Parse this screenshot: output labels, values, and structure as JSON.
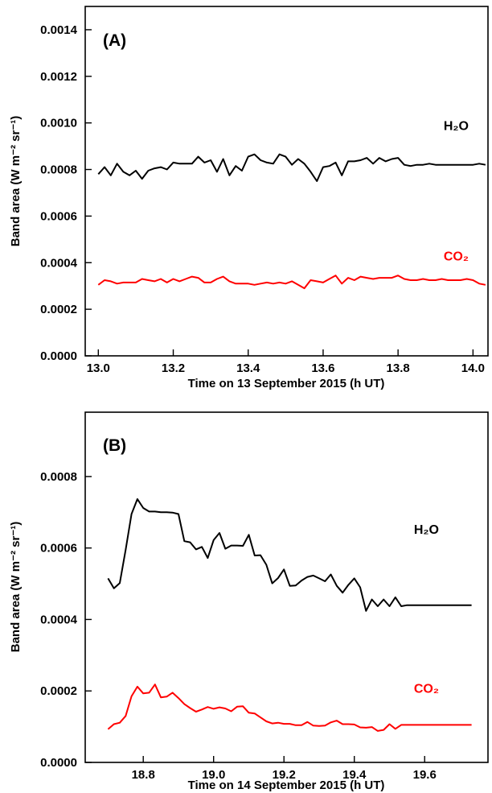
{
  "chart_data": [
    {
      "type": "line",
      "panel_label": "(A)",
      "xlabel": "Time on 13 September 2015  (h UT)",
      "ylabel": "Band area (W m⁻² sr⁻¹)",
      "xlim": [
        12.965,
        14.04
      ],
      "ylim": [
        0.0,
        0.0015
      ],
      "xticks": [
        13.0,
        13.2,
        13.4,
        13.6,
        13.8,
        14.0
      ],
      "xtick_labels": [
        "13.0",
        "13.2",
        "13.4",
        "13.6",
        "13.8",
        "14.0"
      ],
      "yticks": [
        0.0,
        0.0002,
        0.0004,
        0.0006,
        0.0008,
        0.001,
        0.0012,
        0.0014
      ],
      "ytick_labels": [
        "0.0000",
        "0.0002",
        "0.0004",
        "0.0006",
        "0.0008",
        "0.0010",
        "0.0012",
        "0.0014"
      ],
      "grid": false,
      "series": [
        {
          "name": "H₂O",
          "color": "#000000",
          "x": [
            13.0,
            13.0167,
            13.0333,
            13.05,
            13.0667,
            13.0833,
            13.1,
            13.1167,
            13.1333,
            13.15,
            13.1667,
            13.1833,
            13.2,
            13.2167,
            13.2333,
            13.25,
            13.2667,
            13.2833,
            13.3,
            13.3167,
            13.3333,
            13.35,
            13.3667,
            13.3833,
            13.4,
            13.4167,
            13.4333,
            13.45,
            13.4667,
            13.4833,
            13.5,
            13.5167,
            13.5333,
            13.55,
            13.5667,
            13.5833,
            13.6,
            13.6167,
            13.6333,
            13.65,
            13.6667,
            13.6833,
            13.7,
            13.7167,
            13.7333,
            13.75,
            13.7667,
            13.7833,
            13.8,
            13.8167,
            13.8333,
            13.85,
            13.8667,
            13.8833,
            13.9,
            13.9167,
            13.9333,
            13.95,
            13.9667,
            13.9833,
            14.0,
            14.0167,
            14.0333
          ],
          "y": [
            0.00078,
            0.00081,
            0.000775,
            0.000825,
            0.00079,
            0.000775,
            0.000795,
            0.00076,
            0.000795,
            0.000805,
            0.00081,
            0.0008,
            0.00083,
            0.000825,
            0.000825,
            0.000825,
            0.000855,
            0.00083,
            0.00084,
            0.00079,
            0.000845,
            0.000775,
            0.000815,
            0.000795,
            0.000855,
            0.000865,
            0.00084,
            0.00083,
            0.000825,
            0.000865,
            0.000855,
            0.00082,
            0.000845,
            0.000825,
            0.00079,
            0.00075,
            0.00081,
            0.000815,
            0.00083,
            0.000775,
            0.000835,
            0.000835,
            0.00084,
            0.00085,
            0.000825,
            0.00085,
            0.000835,
            0.000845,
            0.00085,
            0.00082,
            0.000815,
            0.00082,
            0.00082,
            0.000825,
            0.00082,
            0.00082,
            0.00082,
            0.00082,
            0.00082,
            0.00082,
            0.00082,
            0.000825,
            0.00082
          ]
        },
        {
          "name": "CO₂",
          "color": "#ff0000",
          "x": [
            13.0,
            13.0167,
            13.0333,
            13.05,
            13.0667,
            13.0833,
            13.1,
            13.1167,
            13.1333,
            13.15,
            13.1667,
            13.1833,
            13.2,
            13.2167,
            13.2333,
            13.25,
            13.2667,
            13.2833,
            13.3,
            13.3167,
            13.3333,
            13.35,
            13.3667,
            13.3833,
            13.4,
            13.4167,
            13.4333,
            13.45,
            13.4667,
            13.4833,
            13.5,
            13.5167,
            13.5333,
            13.55,
            13.5667,
            13.5833,
            13.6,
            13.6167,
            13.6333,
            13.65,
            13.6667,
            13.6833,
            13.7,
            13.7167,
            13.7333,
            13.75,
            13.7667,
            13.7833,
            13.8,
            13.8167,
            13.8333,
            13.85,
            13.8667,
            13.8833,
            13.9,
            13.9167,
            13.9333,
            13.95,
            13.9667,
            13.9833,
            14.0,
            14.0167,
            14.0333
          ],
          "y": [
            0.000305,
            0.000325,
            0.00032,
            0.00031,
            0.000315,
            0.000315,
            0.000315,
            0.00033,
            0.000325,
            0.00032,
            0.00033,
            0.000315,
            0.00033,
            0.00032,
            0.00033,
            0.00034,
            0.000335,
            0.000315,
            0.000315,
            0.00033,
            0.00034,
            0.00032,
            0.00031,
            0.00031,
            0.00031,
            0.000305,
            0.00031,
            0.000315,
            0.00031,
            0.000315,
            0.00031,
            0.00032,
            0.000305,
            0.00029,
            0.000325,
            0.00032,
            0.000315,
            0.00033,
            0.000345,
            0.00031,
            0.000335,
            0.000325,
            0.00034,
            0.000335,
            0.00033,
            0.000335,
            0.000335,
            0.000335,
            0.000345,
            0.00033,
            0.000325,
            0.000325,
            0.00033,
            0.000325,
            0.000325,
            0.00033,
            0.000325,
            0.000325,
            0.000325,
            0.00033,
            0.000325,
            0.00031,
            0.000305
          ]
        }
      ],
      "annotations": [
        {
          "text": "H₂O",
          "x": 13.955,
          "y": 0.00097,
          "color": "#000000"
        },
        {
          "text": "CO₂",
          "x": 13.955,
          "y": 0.00041,
          "color": "#ff0000"
        }
      ]
    },
    {
      "type": "line",
      "panel_label": "(B)",
      "xlabel": "Time on 14 September 2015  (h UT)",
      "ylabel": "Band area (W m⁻² sr⁻¹)",
      "xlim": [
        18.635,
        19.78
      ],
      "ylim": [
        0.0,
        0.00098
      ],
      "xticks": [
        18.8,
        19.0,
        19.2,
        19.4,
        19.6
      ],
      "xtick_labels": [
        "18.8",
        "19.0",
        "19.2",
        "19.4",
        "19.6"
      ],
      "yticks": [
        0.0,
        0.0002,
        0.0004,
        0.0006,
        0.0008
      ],
      "ytick_labels": [
        "0.0000",
        "0.0002",
        "0.0004",
        "0.0006",
        "0.0008"
      ],
      "grid": false,
      "series": [
        {
          "name": "H₂O",
          "color": "#000000",
          "x": [
            18.7,
            18.7167,
            18.7333,
            18.75,
            18.7667,
            18.7833,
            18.8,
            18.8167,
            18.8333,
            18.85,
            18.8667,
            18.8833,
            18.9,
            18.9167,
            18.9333,
            18.95,
            18.9667,
            18.9833,
            19.0,
            19.0167,
            19.0333,
            19.05,
            19.0667,
            19.0833,
            19.1,
            19.1167,
            19.1333,
            19.15,
            19.1667,
            19.1833,
            19.2,
            19.2167,
            19.2333,
            19.25,
            19.2667,
            19.2833,
            19.3,
            19.3167,
            19.3333,
            19.35,
            19.3667,
            19.3833,
            19.4,
            19.4167,
            19.4333,
            19.45,
            19.4667,
            19.4833,
            19.5,
            19.5167,
            19.5333,
            19.55,
            19.5667,
            19.5833,
            19.6,
            19.6167,
            19.6333,
            19.65,
            19.6667,
            19.6833,
            19.7,
            19.7167,
            19.7333
          ],
          "y": [
            0.000515,
            0.000487,
            0.000502,
            0.000595,
            0.000695,
            0.000737,
            0.000712,
            0.000702,
            0.000702,
            0.0007,
            0.0007,
            0.000699,
            0.000695,
            0.000619,
            0.000616,
            0.000596,
            0.000603,
            0.000572,
            0.000622,
            0.000642,
            0.000598,
            0.000607,
            0.000607,
            0.000606,
            0.000637,
            0.000579,
            0.00058,
            0.000553,
            0.000501,
            0.000516,
            0.00054,
            0.000494,
            0.000495,
            0.000509,
            0.000519,
            0.000523,
            0.000515,
            0.000507,
            0.000526,
            0.000494,
            0.000475,
            0.000497,
            0.000515,
            0.00049,
            0.000424,
            0.000456,
            0.000437,
            0.000456,
            0.000437,
            0.000462,
            0.000437,
            0.00044,
            0.00044,
            0.00044,
            0.00044,
            0.00044,
            0.00044,
            0.00044,
            0.00044,
            0.00044,
            0.00044,
            0.00044,
            0.00044
          ]
        },
        {
          "name": "CO₂",
          "color": "#ff0000",
          "x": [
            18.7,
            18.7167,
            18.7333,
            18.75,
            18.7667,
            18.7833,
            18.8,
            18.8167,
            18.8333,
            18.85,
            18.8667,
            18.8833,
            18.9,
            18.9167,
            18.9333,
            18.95,
            18.9667,
            18.9833,
            19.0,
            19.0167,
            19.0333,
            19.05,
            19.0667,
            19.0833,
            19.1,
            19.1167,
            19.1333,
            19.15,
            19.1667,
            19.1833,
            19.2,
            19.2167,
            19.2333,
            19.25,
            19.2667,
            19.2833,
            19.3,
            19.3167,
            19.3333,
            19.35,
            19.3667,
            19.3833,
            19.4,
            19.4167,
            19.4333,
            19.45,
            19.4667,
            19.4833,
            19.5,
            19.5167,
            19.5333,
            19.55,
            19.5667,
            19.5833,
            19.6,
            19.6167,
            19.6333,
            19.65,
            19.6667,
            19.6833,
            19.7,
            19.7167,
            19.7333
          ],
          "y": [
            9.3e-05,
            0.000107,
            0.000111,
            0.00013,
            0.000185,
            0.000212,
            0.000193,
            0.000195,
            0.000218,
            0.000182,
            0.000184,
            0.000195,
            0.00018,
            0.000163,
            0.000152,
            0.000142,
            0.000148,
            0.000155,
            0.00015,
            0.000154,
            0.000151,
            0.000143,
            0.000156,
            0.000157,
            0.000139,
            0.000137,
            0.000126,
            0.000115,
            0.000109,
            0.000111,
            0.000108,
            0.000108,
            0.000104,
            0.000104,
            0.000113,
            0.000103,
            0.000102,
            0.000103,
            0.000112,
            0.000117,
            0.000107,
            0.000107,
            0.000106,
            9.8e-05,
            9.7e-05,
            9.9e-05,
            8.8e-05,
            9.1e-05,
            0.000107,
            9.4e-05,
            0.000105,
            0.000105,
            0.000105,
            0.000105,
            0.000105,
            0.000105,
            0.000105,
            0.000105,
            0.000105,
            0.000105,
            0.000105,
            0.000105,
            0.000105
          ]
        }
      ],
      "annotations": [
        {
          "text": "H₂O",
          "x": 19.605,
          "y": 0.00064,
          "color": "#000000"
        },
        {
          "text": "CO₂",
          "x": 19.605,
          "y": 0.000195,
          "color": "#ff0000"
        }
      ]
    }
  ]
}
